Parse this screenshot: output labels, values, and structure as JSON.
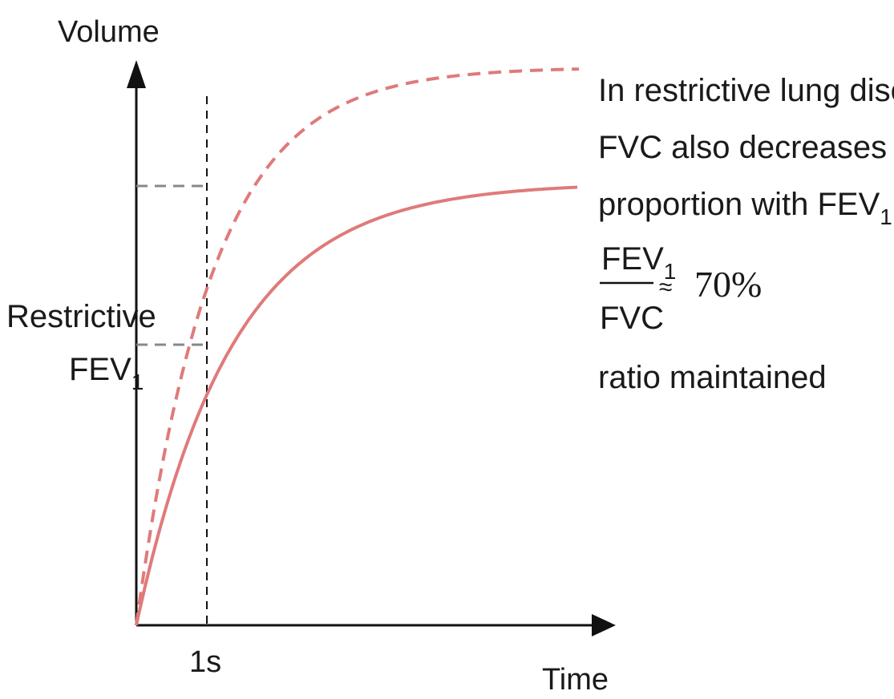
{
  "axes": {
    "y_label": "Volume",
    "x_label": "Time",
    "x_tick": "1s"
  },
  "restrictive_label": {
    "line1": "Restrictive",
    "fev": "FEV",
    "sub": "1"
  },
  "annotation": {
    "line1": "In restrictive lung disease,",
    "line2": "FVC also decreases in",
    "line3_prefix": "proportion with FEV",
    "line3_sub": "1",
    "line3_suffix": " ∴",
    "fraction_numerator": "FEV",
    "fraction_numerator_sub": "1",
    "fraction_denominator": "FVC",
    "approx_symbol": "≈",
    "ratio_value": "70%",
    "line_last": "ratio maintained"
  },
  "colors": {
    "curve": "#e07a7a",
    "axis": "#111111",
    "guide": "#888888"
  }
}
